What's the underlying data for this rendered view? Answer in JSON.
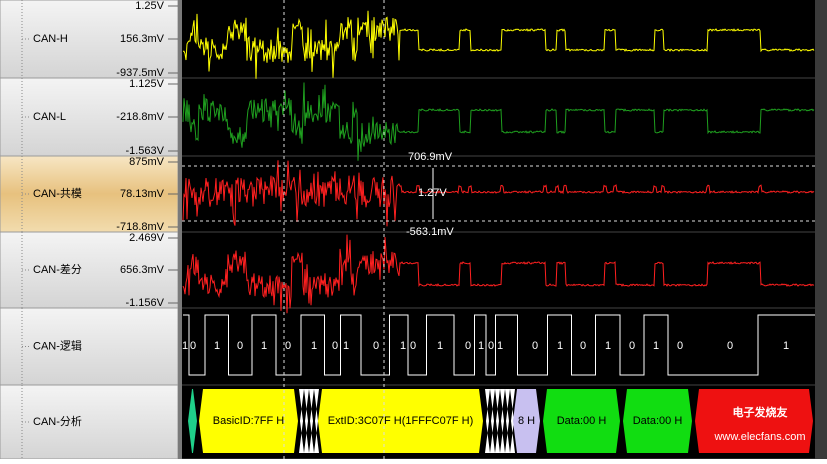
{
  "channels": [
    {
      "name": "CAN-H",
      "top": "1.25V",
      "mid": "156.3mV",
      "bottom": "-937.5mV"
    },
    {
      "name": "CAN-L",
      "top": "1.125V",
      "mid": "-218.8mV",
      "bottom": "-1.563V"
    },
    {
      "name": "CAN-共模",
      "top": "875mV",
      "mid": "78.13mV",
      "bottom": "-718.8mV"
    },
    {
      "name": "CAN-差分",
      "top": "2.469V",
      "mid": "656.3mV",
      "bottom": "-1.156V"
    },
    {
      "name": "CAN-逻辑"
    },
    {
      "name": "CAN-分析"
    }
  ],
  "cursor": {
    "upper": "706.9mV",
    "delta": "1.27V",
    "lower": "-563.1mV"
  },
  "logic_bits": [
    "1",
    "0",
    "1",
    "0",
    "1",
    "0",
    "1",
    "0",
    "1",
    "0",
    "1",
    "0",
    "1",
    "0",
    "1",
    "0",
    "1",
    "0",
    "1",
    "0",
    "1",
    "0",
    "1",
    "0",
    "0",
    "1"
  ],
  "decode": [
    "BasicID:7FF H",
    "ExtID:3C07F H(1FFFC07F H)",
    "8 H",
    "Data:00 H",
    "Data:00 H"
  ],
  "watermark": {
    "logo": "电子发烧友",
    "url": "www.elecfans.com"
  }
}
